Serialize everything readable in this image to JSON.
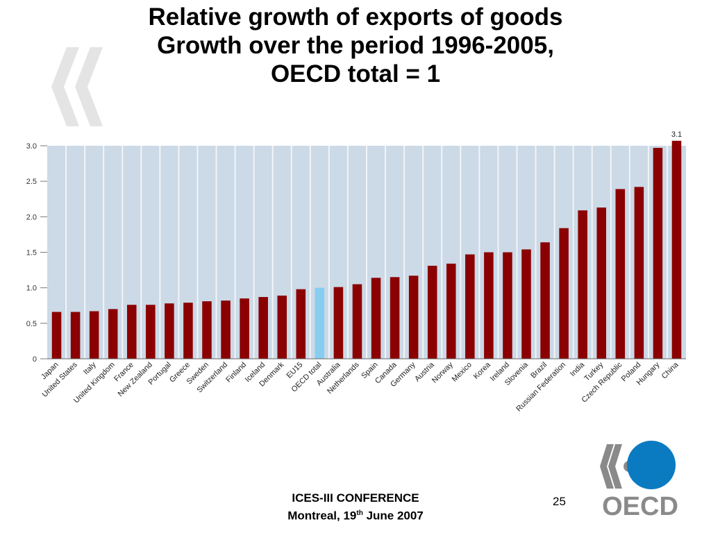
{
  "slide": {
    "title_lines": [
      "Relative growth of exports of goods",
      "Growth over the period 1996-2005,",
      "OECD total = 1"
    ],
    "footer_line1": "ICES-III CONFERENCE",
    "footer_line2_pre": "Montreal, 19",
    "footer_line2_sup": "th",
    "footer_line2_post": " June 2007",
    "page_number": "25",
    "logo_text": "OECD"
  },
  "colors": {
    "bar": "#8b0000",
    "highlight_bar": "#87cdf0",
    "plot_bg": "#ccd9e6",
    "separator": "#f2f5f8",
    "logo_blue": "#0a7bc1",
    "logo_grey": "#8a8a8a"
  },
  "chart_data": {
    "type": "bar",
    "title": "",
    "xlabel": "",
    "ylabel": "",
    "ylim": [
      0,
      3.0
    ],
    "yticks": [
      "0",
      "0.5",
      "1.0",
      "1.5",
      "2.0",
      "2.5",
      "3.0"
    ],
    "grid": true,
    "legend": "none",
    "highlight_category": "OECD total",
    "annotation": {
      "category": "China",
      "text": "3.1"
    },
    "categories": [
      "Japan",
      "United States",
      "Italy",
      "United Kingdom",
      "France",
      "New Zealand",
      "Portugal",
      "Greece",
      "Sweden",
      "Switzerland",
      "Finland",
      "Iceland",
      "Denmark",
      "EU15",
      "OECD total",
      "Australia",
      "Netherlands",
      "Spain",
      "Canada",
      "Germany",
      "Austria",
      "Norway",
      "Mexico",
      "Korea",
      "Ireland",
      "Slovenia",
      "Brazil",
      "Russian Federation",
      "India",
      "Turkey",
      "Czech Republic",
      "Poland",
      "Hungary",
      "China"
    ],
    "values": [
      0.66,
      0.66,
      0.67,
      0.7,
      0.76,
      0.76,
      0.78,
      0.79,
      0.81,
      0.82,
      0.85,
      0.87,
      0.89,
      0.98,
      1.0,
      1.01,
      1.05,
      1.14,
      1.15,
      1.17,
      1.31,
      1.34,
      1.47,
      1.5,
      1.5,
      1.54,
      1.64,
      1.84,
      2.09,
      2.13,
      2.39,
      2.42,
      2.97,
      3.07
    ]
  }
}
